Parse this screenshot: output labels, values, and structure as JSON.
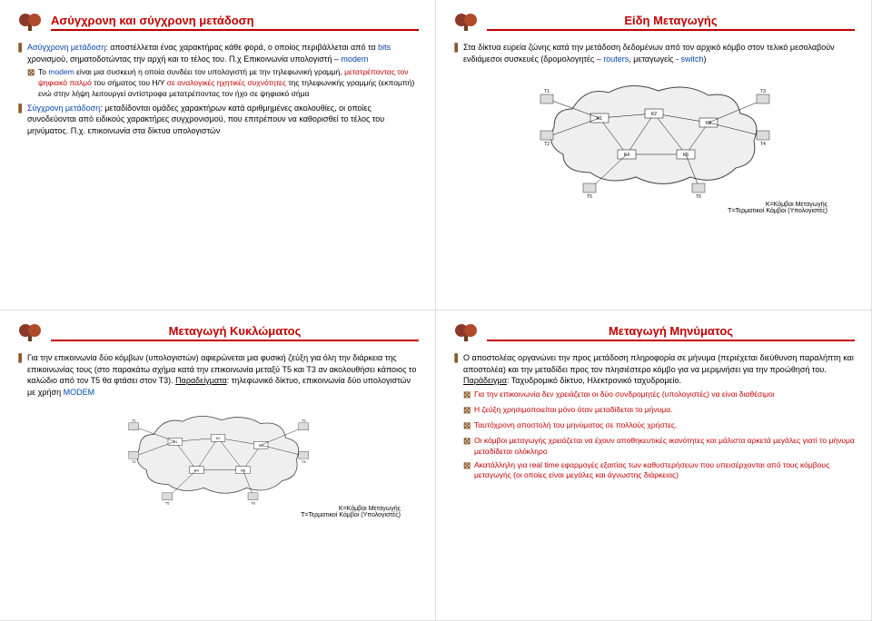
{
  "colors": {
    "title": "#c00000",
    "link": "#0645ad",
    "bullet": "#8b5a2b",
    "cloud_fill": "#efefef",
    "cloud_stroke": "#444444",
    "node_fill": "#ffffff",
    "terminal_fill": "#dcdcdc"
  },
  "slide1": {
    "title": "Ασύγχρονη και σύγχρονη μετάδοση",
    "items": [
      {
        "lvl": 0,
        "html": "<span class='blue'>Ασύγχρονη μετάδοση</span>: αποστέλλεται ένας χαρακτήρας κάθε φορά, ο οποίος περιβάλλεται από τα <span class='blue'>bits</span> χρονισμού, σηματοδοτώντας την αρχή και το τέλος του. Π.χ Επικοινωνία υπολογιστή – <span class='blue'>modem</span>"
      },
      {
        "lvl": 1,
        "html": "Το <span class='blue'>modem</span> είναι μια συσκευή η οποία συνδέει τον υπολογιστή με την τηλεφωνική γραμμή, <span class='red'>μετατρέποντας τον ψηφιακό παλμό</span> του σήματος του Η/Υ <span class='red'>σε αναλογικές ηχητικές συχνότητες</span> της τηλεφωνικής γραμμής (εκπομπή) ενώ στην λήψη λειτουργεί αντίστροφα μετατρέποντας τον ήχο σε ψηφιακό σήμα"
      },
      {
        "lvl": 0,
        "html": "<span class='blue'>Σύγχρονη μετάδοση</span>: μεταδίδονται ομάδες χαρακτήρων κατά αριθμημένες ακολουθίες, οι οποίες συνοδεύονται από ειδικούς χαρακτήρες συγχρονισμού, που επιτρέπουν να καθορισθεί το τέλος του μηνύματος. Π.χ. επικοινωνία στα δίκτυα υπολογιστών"
      }
    ]
  },
  "slide2": {
    "title": "Είδη Μεταγωγής",
    "items": [
      {
        "lvl": 0,
        "html": "Στα δίκτυα ευρεία ζώνης κατά την μετάδοση δεδομένων από τον αρχικό κόμβο στον τελικό μεσολαβούν ενδιάμεσοι συσκευές (δρομολογητές – <span class='blue'>routers</span>, μεταγωγείς - <span class='blue'>switch</span>)"
      }
    ],
    "legend1": "Κ=Κόμβοι Μεταγωγής",
    "legend2": "Τ=Τερματικοί Κόμβοι (Υπολογιστές)"
  },
  "slide3": {
    "title": "Μεταγωγή Κυκλώματος",
    "items": [
      {
        "lvl": 0,
        "html": "Για την επικοινωνία δύο κόμβων (υπολογιστών) αφιερώνεται μια φυσική ζεύξη για όλη την διάρκεια της επικοινωνίας τους (στο παρακάτω σχήμα κατά την επικοινωνία μεταξύ Τ5 και Τ3 αν ακολουθήσει κάποιος το καλώδιο από τον Τ5 θα φτάσει στον Τ3). <span style='text-decoration:underline'>Παραδείγματα</span>: τηλεφωνικό δίκτυο, επικοινωνία δύο υπολογιστών με χρήση <span class='blue'>MODEM</span>"
      }
    ],
    "legend1": "Κ=Κόμβοι Μεταγωγής",
    "legend2": "Τ=Τερματικοί Κόμβοι (Υπολογιστές)"
  },
  "slide4": {
    "title": "Μεταγωγή Μηνύματος",
    "items": [
      {
        "lvl": 0,
        "html": "Ο αποστολέας οργανώνει την προς μετάδοση πληροφορία σε μήνυμα (περιέχεται διεύθυνση παραλήπτη και αποστολέα) και την μεταδίδει προς τον πλησιέστερο κόμβο για να μεριμνήσει για την προώθησή του. <span style='text-decoration:underline'>Παράδειγμα</span>: Ταχυδρομικό δίκτυο, Ηλεκτρονικό ταχυδρομείο."
      },
      {
        "lvl": 1,
        "html": "<span class='red'>Για την επικοινωνία δεν χρειάζεται οι δύο συνδρομητές (υπολογιστές) να είναι διαθέσιμοι</span>"
      },
      {
        "lvl": 1,
        "html": "<span class='red'>Η ζεύξη χρησιμοποιείται μόνο όταν μεταδίδεται το μήνυμα.</span>"
      },
      {
        "lvl": 1,
        "html": "<span class='red'>Ταυτόχρονη αποστολή του μηνύματος σε πολλούς χρήστες.</span>"
      },
      {
        "lvl": 1,
        "html": "<span class='red'>Οι κόμβοι μεταγωγής χρειάζεται να έχουν αποθηκευτικές ικανότητες και μάλιστα αρκετά μεγάλες γιατί το μήνυμα μεταδίδεται ολόκληρο</span>"
      },
      {
        "lvl": 1,
        "html": "<span class='red'>Ακατάλληλη για real time εφαρμογές εξαιτίας των καθυστερήσεων που υπεισέρχονται από τους κόμβους μεταγωγής (οι οποίες είναι μεγάλες και άγνωστης διάρκειας)</span>"
      }
    ]
  }
}
